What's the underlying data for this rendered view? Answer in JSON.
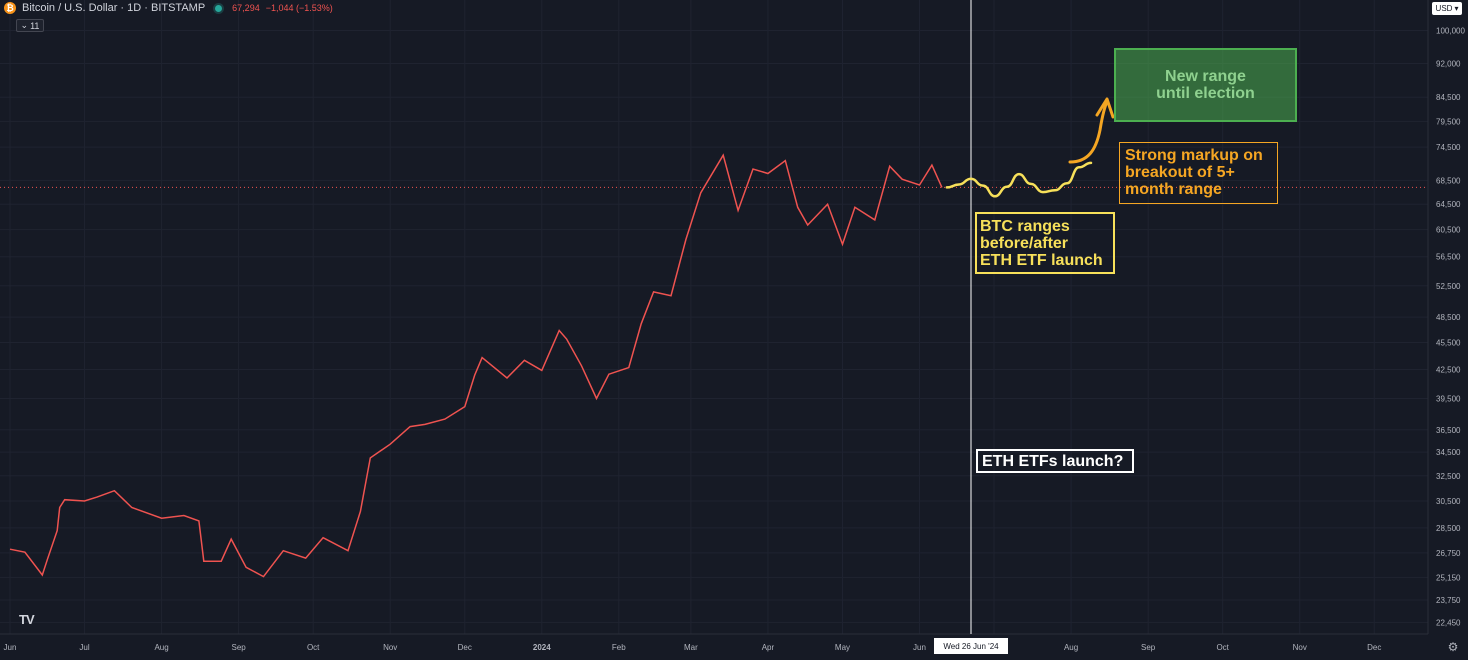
{
  "header": {
    "symbol_icon": "bitcoin-icon",
    "title": "Bitcoin / U.S. Dollar · 1D · BITSTAMP",
    "price": "67,294",
    "change": "−1,044 (−1.53%)",
    "collapse_count": "11"
  },
  "currency": "USD",
  "colors": {
    "background": "#161a25",
    "price_line": "#ef5350",
    "projection": "#f7e05a",
    "arrow": "#f5a623",
    "green_box": "#4caf50",
    "vline": "#ffffff"
  },
  "chart_data": {
    "type": "line",
    "title": "Bitcoin / U.S. Dollar · 1D · BITSTAMP",
    "xlabel": "",
    "ylabel": "",
    "y_scale": "log",
    "ylim": [
      21800,
      108000
    ],
    "x_ticks": [
      "Jun",
      "Jul",
      "Aug",
      "Sep",
      "Oct",
      "Nov",
      "Dec",
      "2024",
      "Feb",
      "Mar",
      "Apr",
      "May",
      "Jun",
      "Jul",
      "Aug",
      "Sep",
      "Oct",
      "Nov",
      "Dec"
    ],
    "y_ticks": [
      "100,000",
      "92,000",
      "84,500",
      "79,500",
      "74,500",
      "68,500",
      "64,500",
      "60,500",
      "56,500",
      "52,500",
      "48,500",
      "45,500",
      "42,500",
      "39,500",
      "36,500",
      "34,500",
      "32,500",
      "30,500",
      "28,500",
      "26,750",
      "25,150",
      "23,750",
      "22,450"
    ],
    "series": [
      {
        "name": "",
        "x": [
          "2023-06-01",
          "2023-06-07",
          "2023-06-14",
          "2023-06-16",
          "2023-06-20",
          "2023-06-21",
          "2023-06-23",
          "2023-07-01",
          "2023-07-06",
          "2023-07-13",
          "2023-07-20",
          "2023-08-01",
          "2023-08-10",
          "2023-08-16",
          "2023-08-18",
          "2023-08-25",
          "2023-08-29",
          "2023-09-04",
          "2023-09-11",
          "2023-09-19",
          "2023-09-28",
          "2023-10-05",
          "2023-10-15",
          "2023-10-20",
          "2023-10-24",
          "2023-11-01",
          "2023-11-09",
          "2023-11-15",
          "2023-11-23",
          "2023-12-01",
          "2023-12-05",
          "2023-12-08",
          "2023-12-18",
          "2023-12-25",
          "2024-01-01",
          "2024-01-08",
          "2024-01-11",
          "2024-01-17",
          "2024-01-23",
          "2024-01-28",
          "2024-02-05",
          "2024-02-10",
          "2024-02-15",
          "2024-02-22",
          "2024-02-28",
          "2024-03-05",
          "2024-03-14",
          "2024-03-20",
          "2024-03-26",
          "2024-04-01",
          "2024-04-08",
          "2024-04-13",
          "2024-04-17",
          "2024-04-25",
          "2024-05-01",
          "2024-05-06",
          "2024-05-14",
          "2024-05-20",
          "2024-05-25",
          "2024-06-01",
          "2024-06-06",
          "2024-06-10"
        ],
        "y": [
          27000,
          26800,
          25300,
          26300,
          28300,
          30000,
          30600,
          30500,
          30800,
          31300,
          30000,
          29200,
          29400,
          29000,
          26200,
          26200,
          27700,
          25800,
          25200,
          26900,
          26400,
          27800,
          26900,
          29700,
          34000,
          35200,
          36800,
          37000,
          37500,
          38700,
          41900,
          43800,
          41600,
          43500,
          42400,
          46900,
          45900,
          42900,
          39500,
          42000,
          42700,
          47700,
          51700,
          51200,
          59000,
          66400,
          73000,
          63500,
          70500,
          69700,
          72000,
          64000,
          61200,
          64500,
          58300,
          64000,
          62000,
          71000,
          68700,
          67700,
          71200,
          67294
        ]
      }
    ],
    "last_price": 67294
  },
  "projection": {
    "y": [
      67300,
      67800,
      68800,
      67600,
      65800,
      67400,
      69600,
      67900,
      66500,
      66800,
      68000,
      70800,
      71600
    ]
  },
  "markers": {
    "vline_label": "Wed 26 Jun '24"
  },
  "annotations": {
    "btc_ranges": [
      "BTC ranges",
      "before/after",
      "ETH ETF launch"
    ],
    "markup": [
      "Strong markup on",
      "breakout of 5+",
      "month range"
    ],
    "new_range": [
      "New range",
      "until election"
    ],
    "eth_launch": "ETH ETFs launch?"
  },
  "logo_text": "TV"
}
